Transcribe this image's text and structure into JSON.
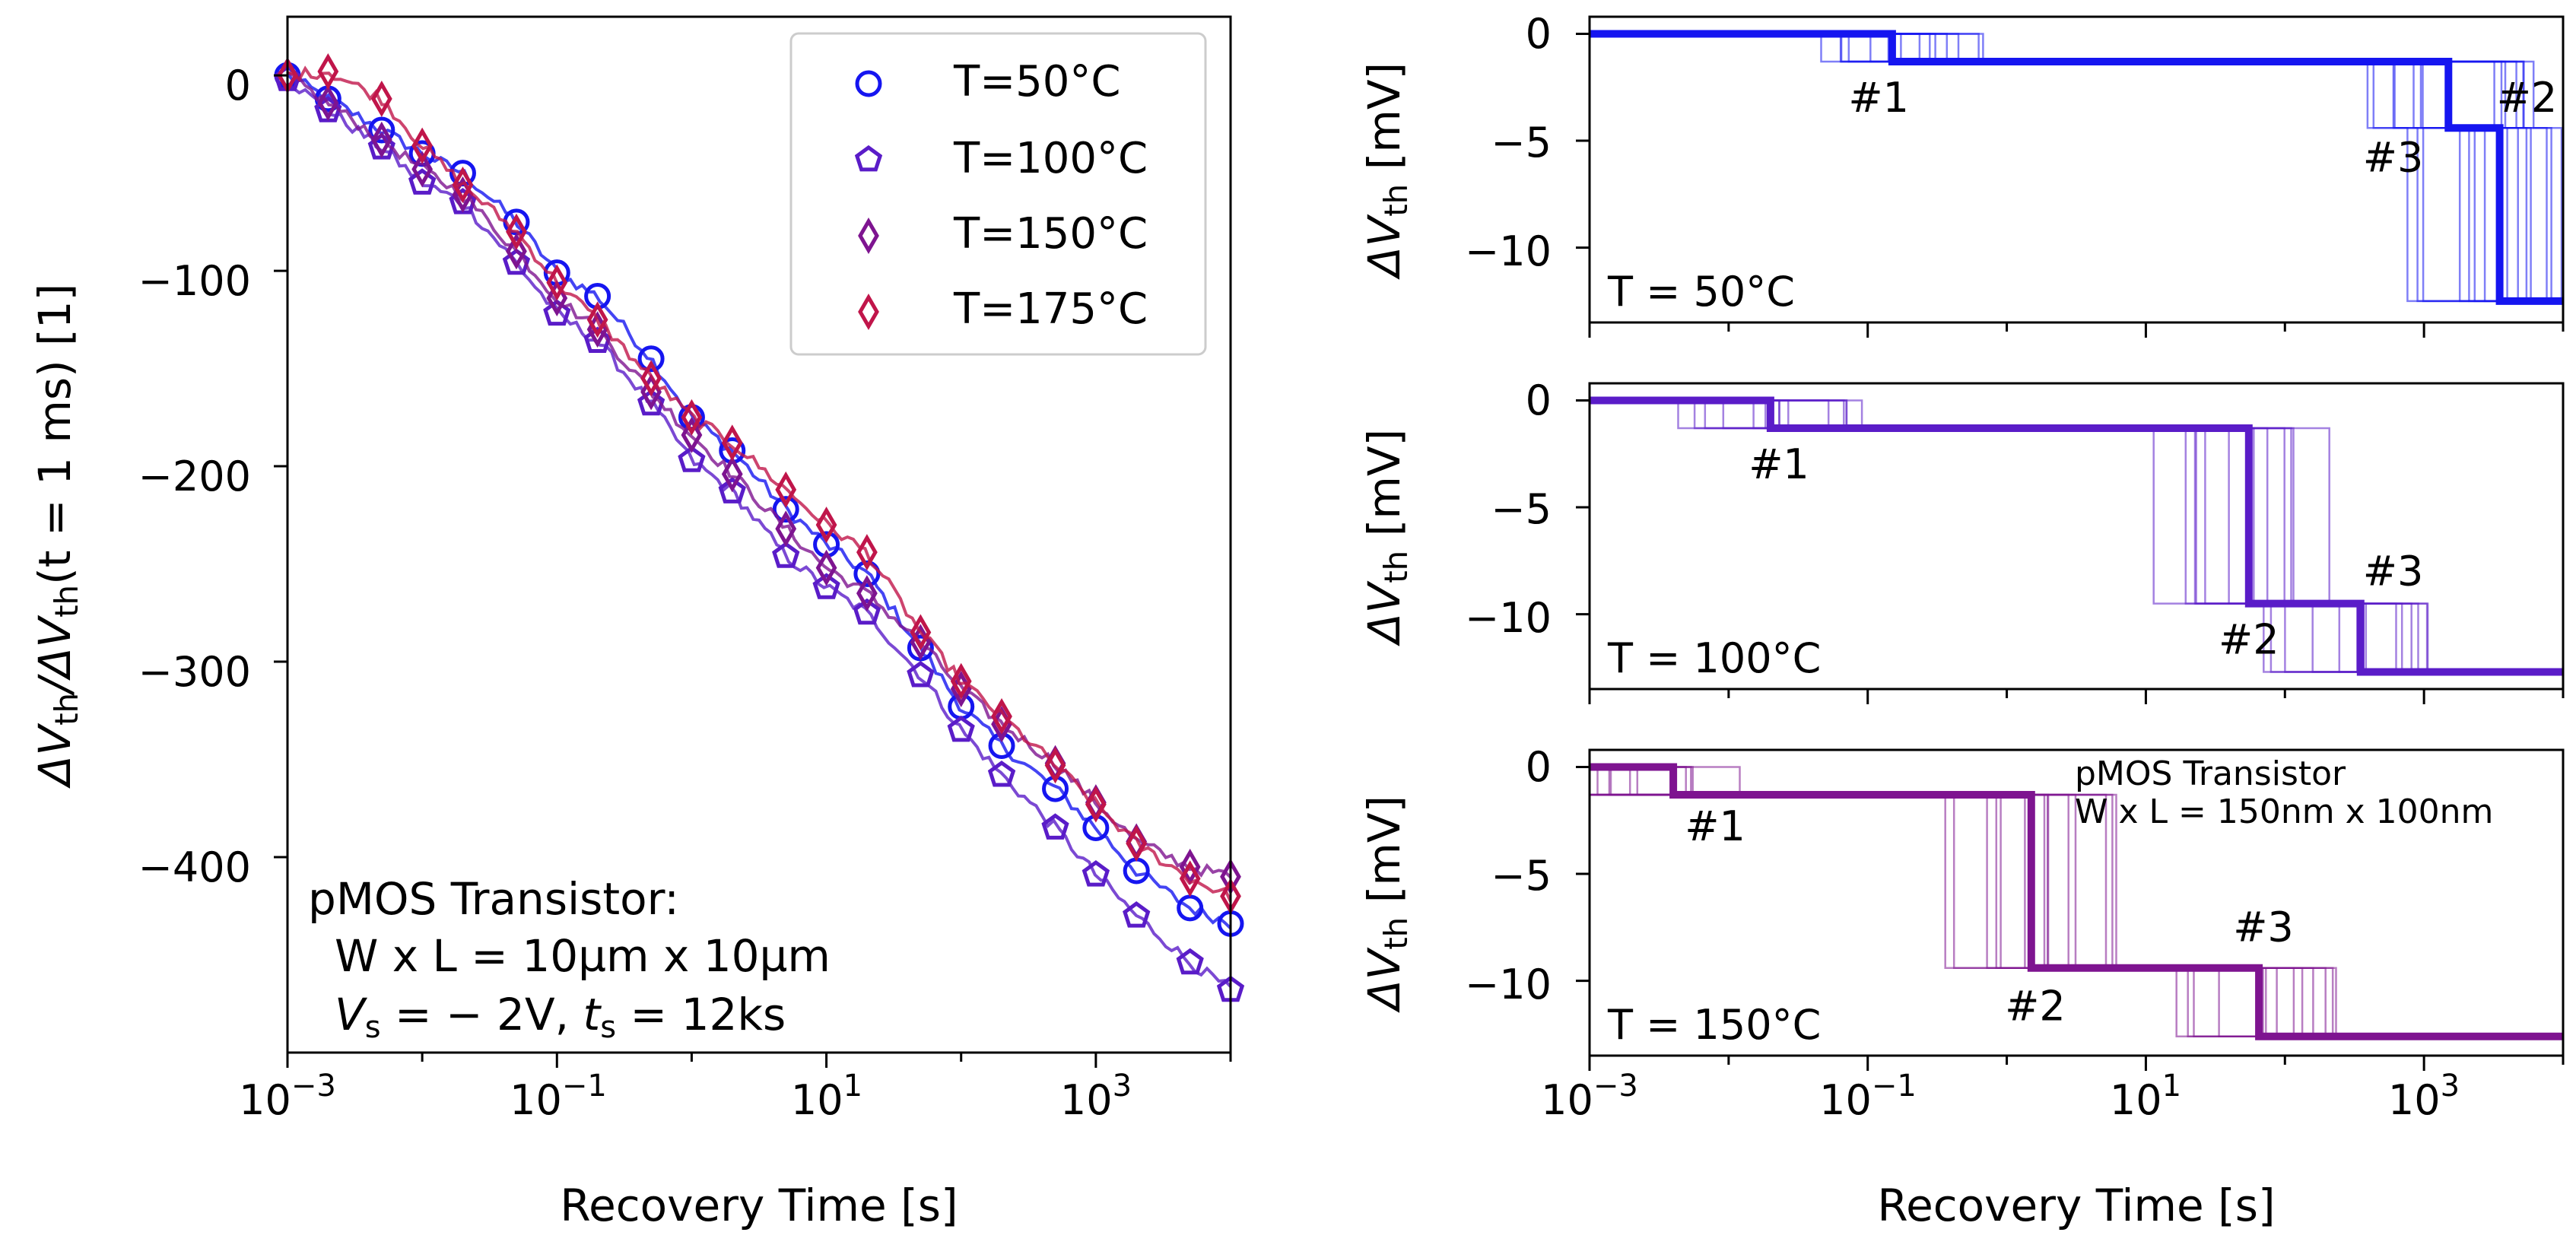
{
  "chart_data": [
    {
      "type": "scatter",
      "id": "main",
      "xscale": "log",
      "xlim": [
        0.001,
        10000
      ],
      "ylim": [
        -500,
        30
      ],
      "xlabel": "Recovery Time  [s]",
      "ylabel_parts": [
        "ΔV",
        "th",
        "/ΔV",
        "th",
        "(t = 1 ms)  [1]"
      ],
      "x_ticks": [
        {
          "base": "10",
          "exp": "−3"
        },
        {
          "base": "10",
          "exp": "−1"
        },
        {
          "base": "10",
          "exp": "1"
        },
        {
          "base": "10",
          "exp": "3"
        }
      ],
      "y_ticks": [
        "0",
        "−100",
        "−200",
        "−300",
        "−400"
      ],
      "legend": [
        {
          "label": "T=50°C",
          "marker": "circle",
          "color": "#1515f0"
        },
        {
          "label": "T=100°C",
          "marker": "pentagon",
          "color": "#5a1cc8"
        },
        {
          "label": "T=150°C",
          "marker": "diamond",
          "color": "#7e1490"
        },
        {
          "label": "T=175°C",
          "marker": "diamond",
          "color": "#c0154a"
        }
      ],
      "annotation": {
        "line1": "pMOS Transistor:",
        "line2": "W x L = 10µm x 10µm",
        "v_sym": "V",
        "v_sub": "s",
        "v_val": " = − 2V,  ",
        "t_sym": "t",
        "t_sub": "s",
        "t_val": " = 12ks"
      },
      "series": [
        {
          "name": "T=50°C",
          "color": "#1515f0",
          "marker": "circle",
          "x": [
            0.001,
            0.002,
            0.005,
            0.01,
            0.02,
            0.05,
            0.1,
            0.2,
            0.5,
            1,
            2,
            5,
            10,
            20,
            50,
            100,
            200,
            500,
            1000,
            2000,
            5000,
            10000
          ],
          "y": [
            0,
            -12,
            -28,
            -40,
            -50,
            -75,
            -101,
            -113,
            -145,
            -175,
            -192,
            -222,
            -240,
            -255,
            -293,
            -323,
            -343,
            -365,
            -385,
            -407,
            -426,
            -434
          ]
        },
        {
          "name": "T=100°C",
          "color": "#5a1cc8",
          "marker": "pentagon",
          "x": [
            0.001,
            0.002,
            0.005,
            0.01,
            0.02,
            0.05,
            0.1,
            0.2,
            0.5,
            1,
            2,
            5,
            10,
            20,
            50,
            100,
            200,
            500,
            1000,
            2000,
            5000,
            10000
          ],
          "y": [
            -2,
            -18,
            -37,
            -55,
            -65,
            -96,
            -122,
            -136,
            -168,
            -197,
            -213,
            -246,
            -262,
            -275,
            -307,
            -335,
            -358,
            -385,
            -409,
            -430,
            -454,
            -468
          ]
        },
        {
          "name": "T=150°C",
          "color": "#7e1490",
          "marker": "diamond",
          "x": [
            0.001,
            0.002,
            0.005,
            0.01,
            0.02,
            0.05,
            0.1,
            0.2,
            0.5,
            1,
            2,
            5,
            10,
            20,
            50,
            100,
            200,
            500,
            1000,
            2000,
            5000,
            10000
          ],
          "y": [
            0,
            -14,
            -33,
            -48,
            -61,
            -90,
            -114,
            -130,
            -162,
            -184,
            -204,
            -232,
            -252,
            -265,
            -290,
            -314,
            -332,
            -352,
            -372,
            -392,
            -405,
            -410
          ]
        },
        {
          "name": "T=175°C",
          "color": "#c0154a",
          "marker": "diamond",
          "x": [
            0.001,
            0.002,
            0.005,
            0.01,
            0.02,
            0.05,
            0.1,
            0.2,
            0.5,
            1,
            2,
            5,
            10,
            20,
            50,
            100,
            200,
            500,
            1000,
            2000,
            5000,
            10000
          ],
          "y": [
            0,
            2,
            -12,
            -36,
            -56,
            -80,
            -106,
            -125,
            -155,
            -175,
            -188,
            -212,
            -230,
            -244,
            -285,
            -310,
            -328,
            -353,
            -373,
            -393,
            -411,
            -420
          ]
        }
      ]
    },
    {
      "type": "line",
      "id": "panel1",
      "label": "T = 50°C",
      "color": "#1515f0",
      "xscale": "log",
      "xlim": [
        0.001,
        10000
      ],
      "ylim": [
        -13.5,
        0.8
      ],
      "ylabel": "ΔV",
      "ylabel_sub": "th",
      "ylabel_unit": "  [mV]",
      "y_ticks": [
        "0",
        "−5",
        "−10"
      ],
      "steps": [
        {
          "x": 0.001,
          "y": 0
        },
        {
          "x": 0.15,
          "y": -1.3
        },
        {
          "x": 1500,
          "y": -4.4
        },
        {
          "x": 3500,
          "y": -12.5
        }
      ],
      "step_labels": [
        {
          "text": "#1",
          "x": 0.12,
          "y": -3.0
        },
        {
          "text": "#2",
          "x": 5500,
          "y": -3.0
        },
        {
          "text": "#3",
          "x": 600,
          "y": -5.8
        }
      ]
    },
    {
      "type": "line",
      "id": "panel2",
      "label": "T = 100°C",
      "color": "#5a1cc8",
      "xscale": "log",
      "xlim": [
        0.001,
        10000
      ],
      "ylim": [
        -13.5,
        0.8
      ],
      "ylabel": "ΔV",
      "ylabel_sub": "th",
      "ylabel_unit": "  [mV]",
      "y_ticks": [
        "0",
        "−5",
        "−10"
      ],
      "steps": [
        {
          "x": 0.001,
          "y": 0
        },
        {
          "x": 0.02,
          "y": -1.3
        },
        {
          "x": 55,
          "y": -9.5
        },
        {
          "x": 350,
          "y": -12.7
        }
      ],
      "step_labels": [
        {
          "text": "#1",
          "x": 0.023,
          "y": -3.0
        },
        {
          "text": "#2",
          "x": 55,
          "y": -11.2
        },
        {
          "text": "#3",
          "x": 600,
          "y": -8.0
        }
      ]
    },
    {
      "type": "line",
      "id": "panel3",
      "label": "T = 150°C",
      "color": "#7e1490",
      "xscale": "log",
      "xlim": [
        0.001,
        10000
      ],
      "ylim": [
        -13.5,
        0.8
      ],
      "ylabel": "ΔV",
      "ylabel_sub": "th",
      "ylabel_unit": "  [mV]",
      "y_ticks": [
        "0",
        "−5",
        "−10"
      ],
      "steps": [
        {
          "x": 0.001,
          "y": 0
        },
        {
          "x": 0.004,
          "y": -1.3
        },
        {
          "x": 1.5,
          "y": -9.4
        },
        {
          "x": 65,
          "y": -12.6
        }
      ],
      "step_labels": [
        {
          "text": "#1",
          "x": 0.008,
          "y": -2.8
        },
        {
          "text": "#2",
          "x": 1.6,
          "y": -11.2
        },
        {
          "text": "#3",
          "x": 70,
          "y": -7.5
        }
      ],
      "inset_text": [
        "pMOS Transistor",
        "W x L = 150nm x 100nm"
      ],
      "xlabel": "Recovery Time  [s]",
      "x_ticks": [
        {
          "base": "10",
          "exp": "−3"
        },
        {
          "base": "10",
          "exp": "−1"
        },
        {
          "base": "10",
          "exp": "1"
        },
        {
          "base": "10",
          "exp": "3"
        }
      ]
    }
  ]
}
